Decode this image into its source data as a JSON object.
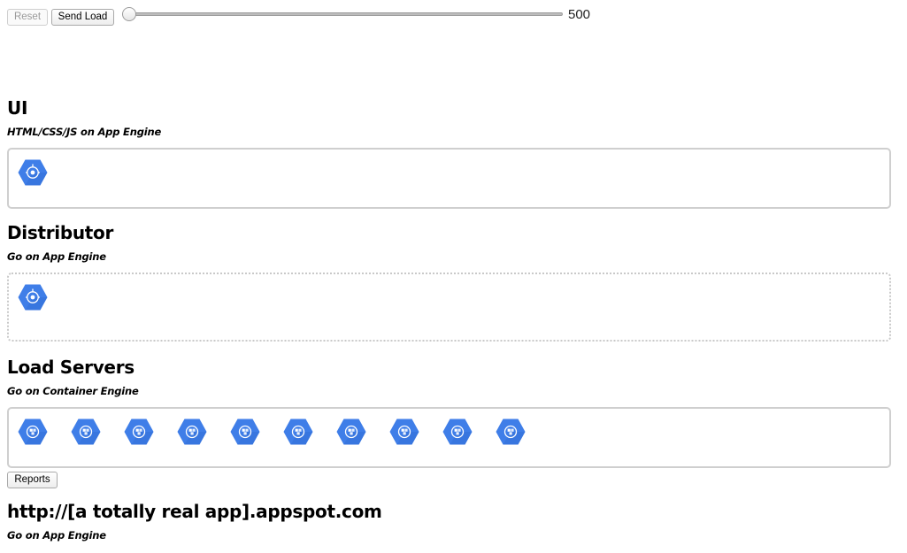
{
  "toolbar": {
    "reset_label": "Reset",
    "send_label": "Send Load",
    "slider_value": "500",
    "slider_fraction": 0
  },
  "sections": {
    "ui": {
      "title": "UI",
      "subtitle": "HTML/CSS/JS on App Engine",
      "instance_count": 1,
      "icon": "app-engine-icon"
    },
    "distributor": {
      "title": "Distributor",
      "subtitle": "Go on App Engine",
      "instance_count": 1,
      "icon": "app-engine-icon"
    },
    "load_servers": {
      "title": "Load Servers",
      "subtitle": "Go on Container Engine",
      "instance_count": 10,
      "icon": "container-engine-icon"
    },
    "app": {
      "title": "http://[a totally real app].appspot.com",
      "subtitle": "Go on App Engine"
    }
  },
  "reports_label": "Reports",
  "colors": {
    "hex_blue": "#3f7ee8",
    "hex_dark": "#2a66cf",
    "box_border": "#cfcfcf"
  }
}
